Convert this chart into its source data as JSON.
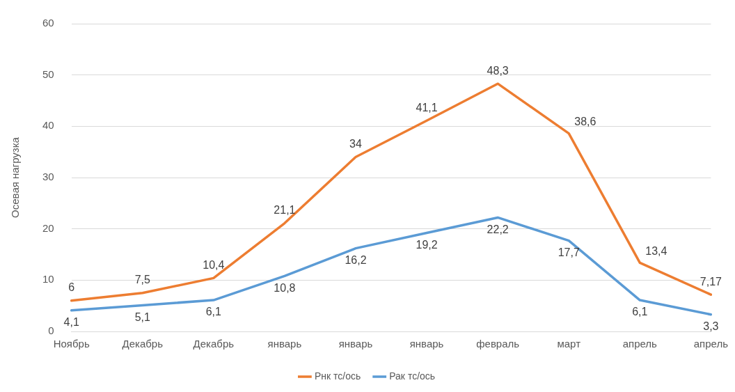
{
  "chart_data": {
    "type": "line",
    "ylabel": "Осевая нагрузка",
    "categories": [
      "Ноябрь",
      "Декабрь",
      "Декабрь",
      "январь",
      "январь",
      "январь",
      "февраль",
      "март",
      "апрель",
      "апрель"
    ],
    "series": [
      {
        "name": "Рнк тс/ось",
        "color": "#ed7d31",
        "values": [
          6,
          7.5,
          10.4,
          21.1,
          34,
          41.1,
          48.3,
          38.6,
          13.4,
          7.17
        ],
        "value_labels": [
          "6",
          "7,5",
          "10,4",
          "21,1",
          "34",
          "41,1",
          "48,3",
          "38,6",
          "13,4",
          "7,17"
        ]
      },
      {
        "name": "Рак тс/ось",
        "color": "#5b9bd5",
        "values": [
          4.1,
          5.1,
          6.1,
          10.8,
          16.2,
          19.2,
          22.2,
          17.7,
          6.1,
          3.3
        ],
        "value_labels": [
          "4,1",
          "5,1",
          "6,1",
          "10,8",
          "16,2",
          "19,2",
          "22,2",
          "17,7",
          "6,1",
          "3,3"
        ]
      }
    ],
    "ylim": [
      0,
      60
    ],
    "yticks": [
      0,
      10,
      20,
      30,
      40,
      50,
      60
    ],
    "grid": "y",
    "legend": "bottom",
    "marker": "none",
    "line_style": "solid"
  }
}
